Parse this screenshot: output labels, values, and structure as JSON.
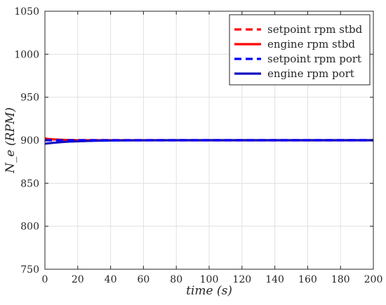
{
  "chart_data": {
    "type": "line",
    "xlabel": "time (s)",
    "ylabel": "N_e (RPM)",
    "xlim": [
      0,
      200
    ],
    "ylim": [
      750,
      1050
    ],
    "x_ticks": [
      0,
      20,
      40,
      60,
      80,
      100,
      120,
      140,
      160,
      180,
      200
    ],
    "y_ticks": [
      750,
      800,
      850,
      900,
      950,
      1000,
      1050
    ],
    "grid": true,
    "legend_position": "top-right",
    "series": [
      {
        "name": "setpoint rpm stbd",
        "color": "#ff0000",
        "style": "dashed",
        "x": [
          0,
          200
        ],
        "y": [
          900,
          900
        ]
      },
      {
        "name": "engine rpm stbd",
        "color": "#ff0000",
        "style": "solid",
        "x": [
          0,
          2,
          5,
          10,
          15,
          20,
          30,
          40,
          50,
          70,
          100,
          150,
          200
        ],
        "y": [
          902,
          901.5,
          901,
          900.5,
          900.2,
          900,
          900,
          900,
          900,
          900,
          900,
          900,
          900
        ]
      },
      {
        "name": "setpoint rpm port",
        "color": "#0000ff",
        "style": "dashed",
        "x": [
          0,
          200
        ],
        "y": [
          900,
          900
        ]
      },
      {
        "name": "engine rpm port",
        "color": "#1010c0",
        "style": "solid",
        "x": [
          0,
          2,
          5,
          10,
          15,
          20,
          25,
          30,
          40,
          50,
          60,
          80,
          100,
          150,
          200
        ],
        "y": [
          896,
          896.4,
          897,
          897.8,
          898.4,
          898.8,
          899.1,
          899.4,
          899.7,
          899.85,
          899.95,
          900,
          900,
          900,
          900
        ]
      }
    ]
  }
}
